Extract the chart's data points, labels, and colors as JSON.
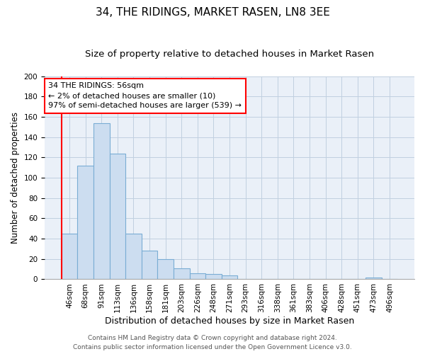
{
  "title": "34, THE RIDINGS, MARKET RASEN, LN8 3EE",
  "subtitle": "Size of property relative to detached houses in Market Rasen",
  "xlabel": "Distribution of detached houses by size in Market Rasen",
  "ylabel": "Number of detached properties",
  "bar_labels": [
    "46sqm",
    "68sqm",
    "91sqm",
    "113sqm",
    "136sqm",
    "158sqm",
    "181sqm",
    "203sqm",
    "226sqm",
    "248sqm",
    "271sqm",
    "293sqm",
    "316sqm",
    "338sqm",
    "361sqm",
    "383sqm",
    "406sqm",
    "428sqm",
    "451sqm",
    "473sqm",
    "496sqm"
  ],
  "bar_values": [
    45,
    112,
    154,
    124,
    45,
    28,
    20,
    11,
    6,
    5,
    4,
    0,
    0,
    0,
    0,
    0,
    0,
    0,
    0,
    2,
    0
  ],
  "bar_fill_color": "#ccddf0",
  "bar_edge_color": "#7aadd4",
  "annotation_box_text": "34 THE RIDINGS: 56sqm\n← 2% of detached houses are smaller (10)\n97% of semi-detached houses are larger (539) →",
  "red_line_x": -0.5,
  "ylim": [
    0,
    200
  ],
  "yticks": [
    0,
    20,
    40,
    60,
    80,
    100,
    120,
    140,
    160,
    180,
    200
  ],
  "footer_line1": "Contains HM Land Registry data © Crown copyright and database right 2024.",
  "footer_line2": "Contains public sector information licensed under the Open Government Licence v3.0.",
  "background_color": "#ffffff",
  "plot_bg_color": "#eaf0f8",
  "grid_color": "#c0d0e0",
  "title_fontsize": 11,
  "subtitle_fontsize": 9.5,
  "xlabel_fontsize": 9,
  "ylabel_fontsize": 8.5,
  "tick_fontsize": 7.5,
  "annotation_fontsize": 8,
  "footer_fontsize": 6.5
}
